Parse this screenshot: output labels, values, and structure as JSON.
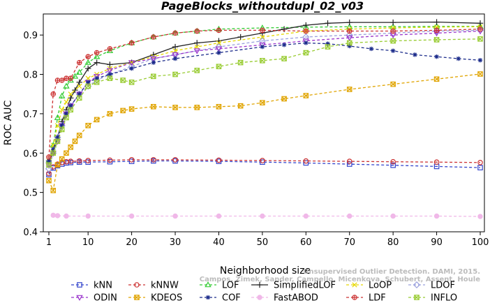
{
  "chart_data": {
    "type": "line",
    "title": "PageBlocks_withoutdupl_02_v03",
    "xlabel": "Neighborhood size",
    "ylabel": "ROC AUC",
    "xlim": [
      1,
      100
    ],
    "ylim": [
      0.4,
      0.95
    ],
    "x_ticks": [
      1,
      10,
      20,
      30,
      40,
      50,
      60,
      70,
      80,
      90,
      100
    ],
    "y_ticks": [
      0.4,
      0.5,
      0.6,
      0.7,
      0.8,
      0.9
    ],
    "grid": false,
    "legend_position": "bottom",
    "credit": {
      "line1": "Unsupervised Outlier Detection. DAMI, 2015.",
      "line2": "Campos, Zimek, Sander, Campello, Micenkova, Schubert, Assent, Houle"
    },
    "series": [
      {
        "name": "kNN",
        "color": "#3344cc",
        "dash": "4,3",
        "marker": "square",
        "x": [
          1,
          2,
          3,
          4,
          5,
          6,
          8,
          10,
          15,
          20,
          25,
          30,
          40,
          50,
          60,
          70,
          80,
          90,
          100
        ],
        "y": [
          0.545,
          0.562,
          0.568,
          0.572,
          0.575,
          0.576,
          0.577,
          0.577,
          0.578,
          0.579,
          0.58,
          0.58,
          0.579,
          0.577,
          0.575,
          0.572,
          0.569,
          0.566,
          0.563
        ]
      },
      {
        "name": "kNNW",
        "color": "#cc3333",
        "dash": "4,3",
        "marker": "circle",
        "x": [
          1,
          2,
          3,
          4,
          5,
          6,
          8,
          10,
          15,
          20,
          25,
          30,
          40,
          50,
          60,
          70,
          80,
          90,
          100
        ],
        "y": [
          0.548,
          0.565,
          0.572,
          0.576,
          0.578,
          0.579,
          0.58,
          0.581,
          0.582,
          0.583,
          0.583,
          0.583,
          0.582,
          0.581,
          0.58,
          0.579,
          0.578,
          0.577,
          0.576
        ]
      },
      {
        "name": "LOF",
        "color": "#33cc33",
        "dash": "4,3",
        "marker": "triangle",
        "x": [
          1,
          2,
          3,
          4,
          5,
          6,
          7,
          8,
          10,
          12,
          15,
          20,
          25,
          30,
          35,
          40,
          50,
          60,
          70,
          80,
          90,
          100
        ],
        "y": [
          0.58,
          0.62,
          0.69,
          0.745,
          0.77,
          0.785,
          0.795,
          0.805,
          0.83,
          0.845,
          0.86,
          0.88,
          0.895,
          0.905,
          0.91,
          0.915,
          0.918,
          0.92,
          0.921,
          0.921,
          0.922,
          0.922
        ]
      },
      {
        "name": "SimplifiedLOF",
        "color": "#222222",
        "dash": "",
        "marker": "plus",
        "x": [
          1,
          2,
          3,
          4,
          5,
          6,
          7,
          8,
          10,
          12,
          15,
          20,
          25,
          30,
          35,
          40,
          45,
          50,
          55,
          60,
          65,
          70,
          80,
          90,
          100
        ],
        "y": [
          0.58,
          0.6,
          0.64,
          0.68,
          0.71,
          0.74,
          0.76,
          0.78,
          0.815,
          0.83,
          0.825,
          0.83,
          0.85,
          0.87,
          0.88,
          0.885,
          0.895,
          0.905,
          0.915,
          0.925,
          0.93,
          0.932,
          0.932,
          0.933,
          0.93
        ]
      },
      {
        "name": "LoOP",
        "color": "#e6d800",
        "dash": "4,3",
        "marker": "x",
        "x": [
          1,
          2,
          3,
          4,
          5,
          6,
          8,
          10,
          12,
          15,
          20,
          25,
          30,
          35,
          40,
          50,
          60,
          70,
          80,
          90,
          100
        ],
        "y": [
          0.58,
          0.62,
          0.67,
          0.71,
          0.73,
          0.75,
          0.77,
          0.79,
          0.8,
          0.815,
          0.83,
          0.845,
          0.86,
          0.87,
          0.88,
          0.895,
          0.91,
          0.915,
          0.918,
          0.92,
          0.921
        ]
      },
      {
        "name": "LDOF",
        "color": "#9aa0dd",
        "dash": "4,3",
        "marker": "diamond",
        "x": [
          1,
          2,
          3,
          4,
          5,
          6,
          8,
          10,
          12,
          15,
          20,
          25,
          30,
          40,
          50,
          60,
          70,
          80,
          90,
          100
        ],
        "y": [
          0.56,
          0.6,
          0.64,
          0.67,
          0.7,
          0.72,
          0.75,
          0.77,
          0.785,
          0.8,
          0.82,
          0.84,
          0.85,
          0.87,
          0.885,
          0.895,
          0.9,
          0.905,
          0.91,
          0.912
        ]
      },
      {
        "name": "ODIN",
        "color": "#9933cc",
        "dash": "4,3",
        "marker": "triangle-down",
        "x": [
          1,
          2,
          3,
          4,
          5,
          6,
          8,
          10,
          12,
          15,
          20,
          25,
          30,
          35,
          40,
          50,
          60,
          70,
          80,
          90,
          100
        ],
        "y": [
          0.57,
          0.6,
          0.63,
          0.67,
          0.7,
          0.72,
          0.75,
          0.78,
          0.795,
          0.81,
          0.83,
          0.84,
          0.85,
          0.86,
          0.865,
          0.875,
          0.885,
          0.893,
          0.9,
          0.905,
          0.91
        ]
      },
      {
        "name": "KDEOS",
        "color": "#e0a400",
        "dash": "4,3",
        "marker": "square-x",
        "x": [
          1,
          2,
          3,
          4,
          5,
          6,
          7,
          8,
          10,
          12,
          15,
          18,
          20,
          25,
          30,
          35,
          40,
          45,
          50,
          55,
          60,
          70,
          80,
          90,
          100
        ],
        "y": [
          0.53,
          0.505,
          0.57,
          0.585,
          0.6,
          0.615,
          0.63,
          0.645,
          0.67,
          0.685,
          0.7,
          0.708,
          0.712,
          0.718,
          0.716,
          0.716,
          0.718,
          0.72,
          0.728,
          0.738,
          0.746,
          0.762,
          0.775,
          0.788,
          0.801
        ]
      },
      {
        "name": "COF",
        "color": "#1a2a8a",
        "dash": "4,3",
        "marker": "asterisk",
        "x": [
          1,
          2,
          3,
          4,
          5,
          6,
          8,
          10,
          12,
          15,
          20,
          25,
          30,
          40,
          50,
          55,
          60,
          65,
          70,
          75,
          80,
          85,
          90,
          95,
          100
        ],
        "y": [
          0.58,
          0.61,
          0.64,
          0.67,
          0.7,
          0.72,
          0.75,
          0.78,
          0.79,
          0.8,
          0.815,
          0.83,
          0.84,
          0.855,
          0.87,
          0.875,
          0.88,
          0.878,
          0.872,
          0.865,
          0.86,
          0.85,
          0.845,
          0.84,
          0.836
        ]
      },
      {
        "name": "FastABOD",
        "color": "#f0b8e8",
        "dash": "4,3",
        "marker": "circle-filled",
        "x": [
          2,
          3,
          5,
          10,
          20,
          30,
          40,
          50,
          60,
          70,
          80,
          90,
          100
        ],
        "y": [
          0.442,
          0.441,
          0.44,
          0.44,
          0.44,
          0.44,
          0.44,
          0.44,
          0.44,
          0.44,
          0.44,
          0.44,
          0.439
        ]
      },
      {
        "name": "LDF",
        "color": "#cc3333",
        "dash": "4,3",
        "marker": "circle-plus",
        "x": [
          1,
          2,
          3,
          4,
          5,
          6,
          8,
          10,
          12,
          15,
          20,
          25,
          30,
          35,
          40,
          50,
          60,
          70,
          80,
          90,
          100
        ],
        "y": [
          0.59,
          0.75,
          0.785,
          0.785,
          0.79,
          0.79,
          0.83,
          0.845,
          0.855,
          0.865,
          0.88,
          0.895,
          0.905,
          0.91,
          0.912,
          0.912,
          0.91,
          0.91,
          0.91,
          0.912,
          0.915
        ]
      },
      {
        "name": "INFLO",
        "color": "#99cc33",
        "dash": "4,3",
        "marker": "square-x",
        "x": [
          1,
          2,
          3,
          4,
          5,
          6,
          8,
          10,
          12,
          15,
          18,
          20,
          25,
          30,
          35,
          40,
          45,
          50,
          55,
          60,
          65,
          70,
          80,
          90,
          100
        ],
        "y": [
          0.57,
          0.6,
          0.63,
          0.66,
          0.69,
          0.71,
          0.74,
          0.77,
          0.78,
          0.79,
          0.785,
          0.78,
          0.795,
          0.8,
          0.81,
          0.82,
          0.83,
          0.835,
          0.84,
          0.855,
          0.87,
          0.88,
          0.885,
          0.888,
          0.89
        ]
      }
    ]
  }
}
